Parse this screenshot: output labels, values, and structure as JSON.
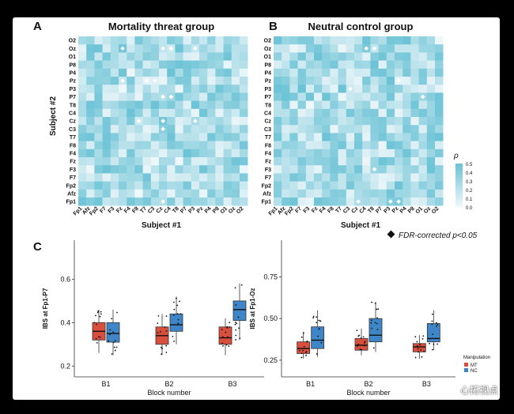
{
  "figure": {
    "panelA": {
      "letter": "A",
      "title": "Mortality threat group"
    },
    "panelB": {
      "letter": "B",
      "title": "Neutral control group"
    },
    "panelC": {
      "letter": "C"
    },
    "heatmap_ylabel": "Subject #2",
    "heatmap_xlabel": "Subject #1",
    "colorbar": {
      "symbol": "ρ",
      "ticks": [
        "0.5",
        "0.4",
        "0.3",
        "0.2",
        "0.1",
        "0.0"
      ]
    },
    "fdr_note": "FDR-corrected p<0.05",
    "electrodes_y": [
      "O2",
      "Oz",
      "O1",
      "P8",
      "P4",
      "Pz",
      "P3",
      "P7",
      "T8",
      "C4",
      "Cz",
      "C3",
      "T7",
      "F8",
      "F4",
      "Fz",
      "F3",
      "F7",
      "Fp2",
      "Afz",
      "Fp1"
    ],
    "electrodes_x": [
      "Fp1",
      "Afz",
      "Fp2",
      "F7",
      "F3",
      "Fz",
      "F4",
      "F8",
      "T7",
      "C3",
      "Cz",
      "C4",
      "T8",
      "P7",
      "P3",
      "Pz",
      "P4",
      "P8",
      "O1",
      "Oz",
      "O2"
    ],
    "colors": {
      "heat_low": "#eef7fa",
      "heat_high": "#6cc3d6",
      "mt": "#d94f3d",
      "nc": "#3f86c8"
    }
  },
  "chart_data": [
    {
      "type": "box",
      "ylabel": "IBS at Fp1-P7",
      "xlabel": "Block number",
      "categories": [
        "B1",
        "B2",
        "B3"
      ],
      "yticks": [
        "0.2",
        "0.4",
        "0.6"
      ],
      "ylim": [
        0.15,
        0.78
      ],
      "series": [
        {
          "name": "MT",
          "stats": [
            [
              0.26,
              0.32,
              0.36,
              0.4,
              0.46
            ],
            [
              0.25,
              0.3,
              0.34,
              0.38,
              0.44
            ],
            [
              0.25,
              0.3,
              0.33,
              0.38,
              0.42
            ]
          ]
        },
        {
          "name": "NC",
          "stats": [
            [
              0.25,
              0.31,
              0.35,
              0.4,
              0.46
            ],
            [
              0.3,
              0.36,
              0.39,
              0.44,
              0.52
            ],
            [
              0.32,
              0.41,
              0.46,
              0.5,
              0.58
            ]
          ]
        }
      ]
    },
    {
      "type": "box",
      "ylabel": "IBS at Fp1-Oz",
      "xlabel": "Block number",
      "categories": [
        "B1",
        "B2",
        "B3"
      ],
      "yticks": [
        "0.25",
        "0.50",
        "0.75"
      ],
      "ylim": [
        0.15,
        0.97
      ],
      "series": [
        {
          "name": "MT",
          "stats": [
            [
              0.26,
              0.29,
              0.32,
              0.36,
              0.42
            ],
            [
              0.28,
              0.31,
              0.34,
              0.38,
              0.44
            ],
            [
              0.26,
              0.3,
              0.33,
              0.35,
              0.4
            ]
          ]
        },
        {
          "name": "NC",
          "stats": [
            [
              0.27,
              0.32,
              0.37,
              0.45,
              0.55
            ],
            [
              0.3,
              0.36,
              0.4,
              0.5,
              0.6
            ],
            [
              0.31,
              0.36,
              0.38,
              0.47,
              0.55
            ]
          ]
        }
      ],
      "legend": {
        "title": "Manipulation",
        "items": [
          "MT",
          "NC"
        ]
      }
    }
  ],
  "watermark": "心拓视点"
}
